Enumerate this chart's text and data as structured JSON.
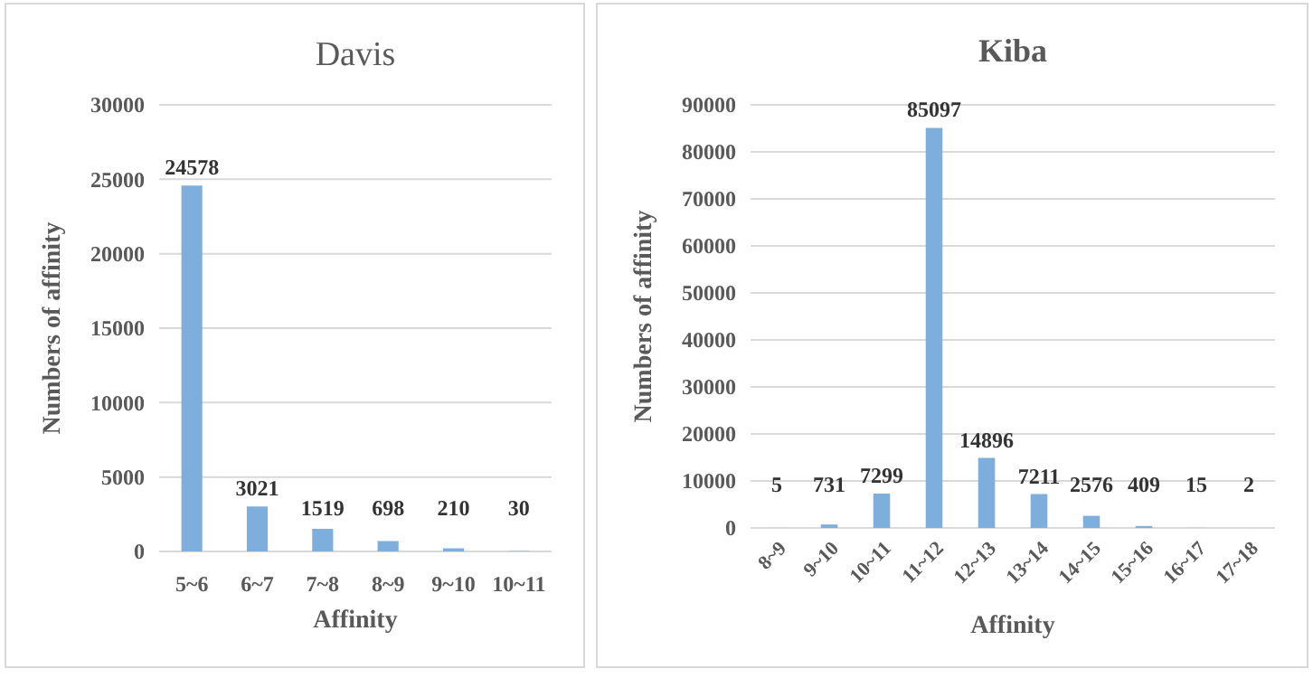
{
  "chart_data": [
    {
      "type": "bar",
      "title": "Davis",
      "xlabel": "Affinity",
      "ylabel": "Numbers of affinity",
      "categories": [
        "5~6",
        "6~7",
        "7~8",
        "8~9",
        "9~10",
        "10~11"
      ],
      "values": [
        24578,
        3021,
        1519,
        698,
        210,
        30
      ],
      "color": "#7eaedb",
      "ylim": [
        0,
        30000
      ],
      "yticks": [
        0,
        5000,
        10000,
        15000,
        20000,
        25000,
        30000
      ],
      "grid": "y",
      "data_labels": true
    },
    {
      "type": "bar",
      "title": "Kiba",
      "xlabel": "Affinity",
      "ylabel": "Numbers of affinity",
      "categories": [
        "8~9",
        "9~10",
        "10~11",
        "11~12",
        "12~13",
        "13~14",
        "14~15",
        "15~16",
        "16~17",
        "17~18"
      ],
      "values": [
        5,
        731,
        7299,
        85097,
        14896,
        7211,
        2576,
        409,
        15,
        2
      ],
      "color": "#7eaedb",
      "ylim": [
        0,
        90000
      ],
      "yticks": [
        0,
        10000,
        20000,
        30000,
        40000,
        50000,
        60000,
        70000,
        80000,
        90000
      ],
      "grid": "y",
      "data_labels": true
    }
  ]
}
